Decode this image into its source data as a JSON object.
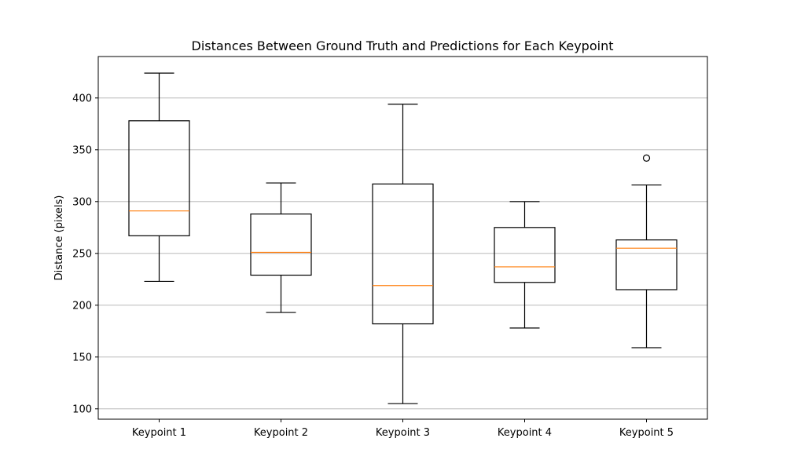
{
  "chart_data": {
    "type": "boxplot",
    "title": "Distances Between Ground Truth and Predictions for Each Keypoint",
    "xlabel": "",
    "ylabel": "Distance (pixels)",
    "ylim": [
      90,
      440
    ],
    "yticks": [
      100,
      150,
      200,
      250,
      300,
      350,
      400
    ],
    "grid": "y",
    "categories": [
      "Keypoint 1",
      "Keypoint 2",
      "Keypoint 3",
      "Keypoint 4",
      "Keypoint 5"
    ],
    "boxes": [
      {
        "whisker_low": 223,
        "q1": 267,
        "median": 291,
        "q3": 378,
        "whisker_high": 424,
        "outliers": []
      },
      {
        "whisker_low": 193,
        "q1": 229,
        "median": 251,
        "q3": 288,
        "whisker_high": 318,
        "outliers": []
      },
      {
        "whisker_low": 105,
        "q1": 182,
        "median": 219,
        "q3": 317,
        "whisker_high": 394,
        "outliers": []
      },
      {
        "whisker_low": 178,
        "q1": 222,
        "median": 237,
        "q3": 275,
        "whisker_high": 300,
        "outliers": []
      },
      {
        "whisker_low": 159,
        "q1": 215,
        "median": 255,
        "q3": 263,
        "whisker_high": 316,
        "outliers": [
          342
        ]
      }
    ],
    "colors": {
      "box": "#000000",
      "median": "#ff7f0e",
      "grid": "#b0b0b0"
    }
  }
}
